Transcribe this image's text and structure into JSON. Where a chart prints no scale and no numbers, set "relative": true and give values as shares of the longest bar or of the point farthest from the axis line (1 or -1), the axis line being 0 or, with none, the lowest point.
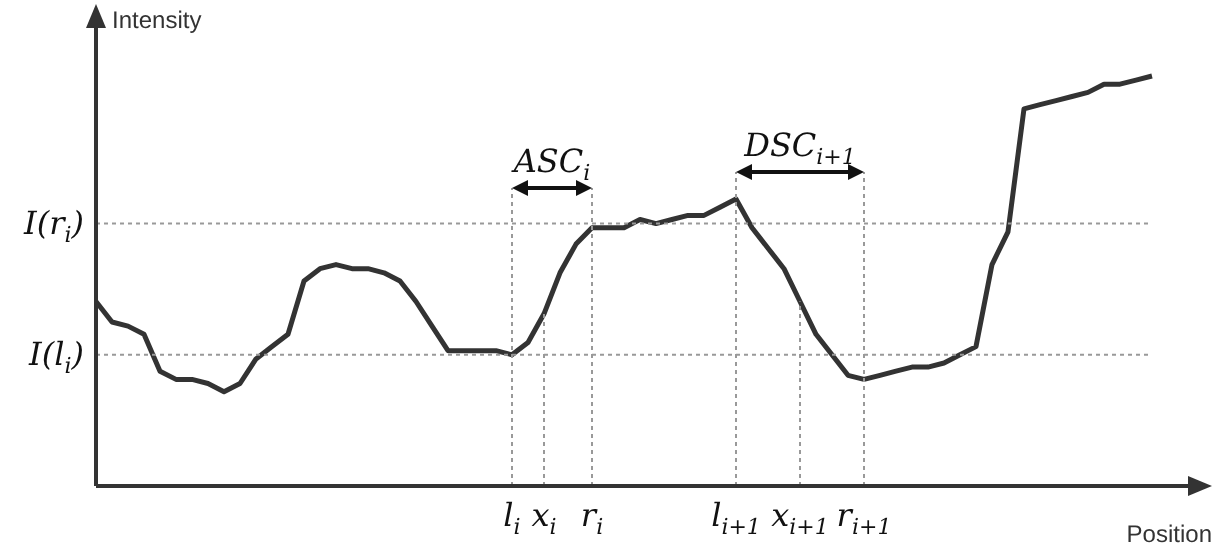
{
  "chart_data": {
    "type": "line",
    "relative": true,
    "xlabel": "Position",
    "ylabel": "Intensity",
    "color": "#333333",
    "legend": false,
    "marker": "none",
    "categories": [
      null,
      null,
      null,
      null,
      null,
      null,
      null,
      null,
      null,
      null,
      null,
      null,
      null,
      null,
      null,
      null,
      null,
      null,
      null,
      null,
      null,
      null,
      null,
      null,
      null,
      null,
      "l$_{i}$",
      null,
      "x$_{i}$",
      null,
      null,
      "r$_{i}$",
      null,
      null,
      null,
      null,
      null,
      null,
      null,
      null,
      "l$_{i+1}$",
      null,
      null,
      null,
      "x$_{i+1}$",
      null,
      null,
      null,
      "r$_{i+1}$",
      null,
      null,
      null,
      null,
      null,
      null,
      null,
      null,
      null,
      null,
      null,
      null,
      null,
      null,
      null,
      null,
      null,
      null
    ],
    "values": [
      0.45,
      0.4,
      0.39,
      0.37,
      0.28,
      0.26,
      0.26,
      0.25,
      0.23,
      0.25,
      0.31,
      0.34,
      0.37,
      0.5,
      0.53,
      0.54,
      0.53,
      0.53,
      0.52,
      0.5,
      0.45,
      0.39,
      0.33,
      0.33,
      0.33,
      0.33,
      0.32,
      0.35,
      0.42,
      0.52,
      0.59,
      0.63,
      0.63,
      0.63,
      0.65,
      0.64,
      0.65,
      0.66,
      0.66,
      0.68,
      0.7,
      0.63,
      0.58,
      0.53,
      0.45,
      0.37,
      0.32,
      0.27,
      0.26,
      0.27,
      0.28,
      0.29,
      0.29,
      0.3,
      0.32,
      0.34,
      0.54,
      0.62,
      0.92,
      0.93,
      0.94,
      0.95,
      0.96,
      0.98,
      0.98,
      0.99,
      1
    ],
    "ref_lines": [
      {
        "axis": "y",
        "value": 0.64,
        "label": "I(r$_{i}$)",
        "line_style": "dotted",
        "color": "#999999"
      },
      {
        "axis": "y",
        "value": 0.32,
        "label": "I(l$_{i}$)",
        "line_style": "dotted",
        "color": "#999999"
      },
      {
        "axis": "x",
        "value": "l$_{i}$",
        "line_style": "dotted",
        "color": "#999999"
      },
      {
        "axis": "x",
        "value": "x$_{i}$",
        "line_style": "dotted",
        "color": "#999999"
      },
      {
        "axis": "x",
        "value": "r$_{i}$",
        "line_style": "dotted",
        "color": "#999999"
      },
      {
        "axis": "x",
        "value": "l$_{i+1}$",
        "line_style": "dotted",
        "color": "#999999"
      },
      {
        "axis": "x",
        "value": "x$_{i+1}$",
        "line_style": "dotted",
        "color": "#999999"
      },
      {
        "axis": "x",
        "value": "r$_{i+1}$",
        "line_style": "dotted",
        "color": "#999999"
      }
    ],
    "annotations": [
      "ASC$_{i}$",
      "DSC$_{i+1}$"
    ]
  }
}
